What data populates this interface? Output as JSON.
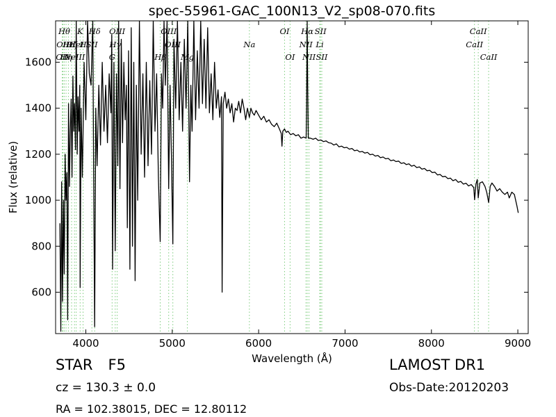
{
  "chart_data": {
    "type": "line",
    "title": "spec-55961-GAC_100N13_V2_sp08-070.fits",
    "xlabel": "Wavelength (Å)",
    "ylabel": "Flux (relative)",
    "xlim": [
      3650,
      9120
    ],
    "ylim": [
      420,
      1780
    ],
    "xticks": [
      4000,
      5000,
      6000,
      7000,
      8000,
      9000
    ],
    "yticks": [
      600,
      800,
      1000,
      1200,
      1400,
      1600
    ],
    "grid": false,
    "series": [
      {
        "color": "#000000",
        "points": [
          [
            3700,
            900
          ],
          [
            3710,
            430
          ],
          [
            3720,
            1080
          ],
          [
            3730,
            560
          ],
          [
            3740,
            1000
          ],
          [
            3750,
            680
          ],
          [
            3760,
            1200
          ],
          [
            3770,
            1000
          ],
          [
            3780,
            1120
          ],
          [
            3790,
            480
          ],
          [
            3800,
            1420
          ],
          [
            3810,
            1060
          ],
          [
            3820,
            1300
          ],
          [
            3830,
            1440
          ],
          [
            3840,
            1100
          ],
          [
            3850,
            1540
          ],
          [
            3860,
            1300
          ],
          [
            3870,
            1420
          ],
          [
            3880,
            1220
          ],
          [
            3889,
            1780
          ],
          [
            3900,
            1200
          ],
          [
            3910,
            1450
          ],
          [
            3920,
            1300
          ],
          [
            3930,
            1500
          ],
          [
            3934,
            620
          ],
          [
            3945,
            1400
          ],
          [
            3960,
            1100
          ],
          [
            3970,
            1350
          ],
          [
            3980,
            1600
          ],
          [
            4000,
            1350
          ],
          [
            4020,
            1780
          ],
          [
            4040,
            1550
          ],
          [
            4060,
            1500
          ],
          [
            4080,
            1780
          ],
          [
            4090,
            1150
          ],
          [
            4102,
            450
          ],
          [
            4115,
            1400
          ],
          [
            4130,
            1150
          ],
          [
            4150,
            1500
          ],
          [
            4170,
            1240
          ],
          [
            4190,
            1600
          ],
          [
            4210,
            1300
          ],
          [
            4230,
            1500
          ],
          [
            4250,
            1250
          ],
          [
            4270,
            1550
          ],
          [
            4290,
            1380
          ],
          [
            4300,
            1720
          ],
          [
            4310,
            700
          ],
          [
            4325,
            1600
          ],
          [
            4340,
            780
          ],
          [
            4355,
            1550
          ],
          [
            4370,
            1150
          ],
          [
            4380,
            1780
          ],
          [
            4395,
            1050
          ],
          [
            4410,
            1700
          ],
          [
            4425,
            1250
          ],
          [
            4440,
            1600
          ],
          [
            4455,
            1350
          ],
          [
            4470,
            1500
          ],
          [
            4480,
            880
          ],
          [
            4495,
            1650
          ],
          [
            4510,
            700
          ],
          [
            4525,
            1750
          ],
          [
            4540,
            800
          ],
          [
            4555,
            1600
          ],
          [
            4570,
            650
          ],
          [
            4585,
            1500
          ],
          [
            4600,
            1000
          ],
          [
            4620,
            1780
          ],
          [
            4640,
            1200
          ],
          [
            4660,
            1550
          ],
          [
            4680,
            1100
          ],
          [
            4700,
            1600
          ],
          [
            4720,
            1150
          ],
          [
            4740,
            1520
          ],
          [
            4760,
            1200
          ],
          [
            4780,
            1780
          ],
          [
            4800,
            1300
          ],
          [
            4820,
            1550
          ],
          [
            4840,
            1100
          ],
          [
            4861,
            820
          ],
          [
            4875,
            1550
          ],
          [
            4890,
            1400
          ],
          [
            4905,
            1780
          ],
          [
            4920,
            1500
          ],
          [
            4940,
            1780
          ],
          [
            4959,
            1050
          ],
          [
            4975,
            1500
          ],
          [
            4990,
            1200
          ],
          [
            5007,
            810
          ],
          [
            5020,
            1700
          ],
          [
            5040,
            1400
          ],
          [
            5060,
            1780
          ],
          [
            5080,
            1350
          ],
          [
            5100,
            1600
          ],
          [
            5120,
            1300
          ],
          [
            5140,
            1700
          ],
          [
            5160,
            1400
          ],
          [
            5180,
            1780
          ],
          [
            5200,
            1080
          ],
          [
            5215,
            1500
          ],
          [
            5230,
            1300
          ],
          [
            5250,
            1780
          ],
          [
            5270,
            1350
          ],
          [
            5290,
            1650
          ],
          [
            5310,
            1400
          ],
          [
            5330,
            1780
          ],
          [
            5350,
            1420
          ],
          [
            5370,
            1700
          ],
          [
            5390,
            1400
          ],
          [
            5410,
            1750
          ],
          [
            5430,
            1380
          ],
          [
            5450,
            1550
          ],
          [
            5470,
            1350
          ],
          [
            5490,
            1600
          ],
          [
            5510,
            1400
          ],
          [
            5530,
            1480
          ],
          [
            5550,
            1360
          ],
          [
            5570,
            1450
          ],
          [
            5577,
            600
          ],
          [
            5590,
            1420
          ],
          [
            5610,
            1470
          ],
          [
            5630,
            1400
          ],
          [
            5650,
            1440
          ],
          [
            5670,
            1380
          ],
          [
            5690,
            1420
          ],
          [
            5710,
            1340
          ],
          [
            5730,
            1400
          ],
          [
            5750,
            1390
          ],
          [
            5770,
            1430
          ],
          [
            5790,
            1380
          ],
          [
            5810,
            1440
          ],
          [
            5830,
            1400
          ],
          [
            5850,
            1350
          ],
          [
            5870,
            1400
          ],
          [
            5893,
            1360
          ],
          [
            5910,
            1400
          ],
          [
            5930,
            1380
          ],
          [
            5950,
            1370
          ],
          [
            5970,
            1390
          ],
          [
            6000,
            1370
          ],
          [
            6030,
            1350
          ],
          [
            6060,
            1365
          ],
          [
            6090,
            1340
          ],
          [
            6120,
            1350
          ],
          [
            6150,
            1330
          ],
          [
            6180,
            1320
          ],
          [
            6210,
            1335
          ],
          [
            6240,
            1310
          ],
          [
            6262,
            1290
          ],
          [
            6270,
            1235
          ],
          [
            6280,
            1300
          ],
          [
            6300,
            1310
          ],
          [
            6320,
            1295
          ],
          [
            6340,
            1300
          ],
          [
            6370,
            1285
          ],
          [
            6400,
            1290
          ],
          [
            6430,
            1280
          ],
          [
            6460,
            1285
          ],
          [
            6490,
            1270
          ],
          [
            6520,
            1275
          ],
          [
            6550,
            1270
          ],
          [
            6555,
            1400
          ],
          [
            6562,
            1780
          ],
          [
            6568,
            1500
          ],
          [
            6575,
            1270
          ],
          [
            6600,
            1270
          ],
          [
            6630,
            1265
          ],
          [
            6660,
            1270
          ],
          [
            6690,
            1260
          ],
          [
            6720,
            1262
          ],
          [
            6750,
            1255
          ],
          [
            6780,
            1258
          ],
          [
            6810,
            1250
          ],
          [
            6840,
            1248
          ],
          [
            6870,
            1240
          ],
          [
            6900,
            1245
          ],
          [
            6930,
            1232
          ],
          [
            6960,
            1235
          ],
          [
            6990,
            1228
          ],
          [
            7020,
            1230
          ],
          [
            7050,
            1222
          ],
          [
            7080,
            1225
          ],
          [
            7110,
            1215
          ],
          [
            7140,
            1218
          ],
          [
            7170,
            1210
          ],
          [
            7200,
            1212
          ],
          [
            7230,
            1205
          ],
          [
            7260,
            1208
          ],
          [
            7290,
            1198
          ],
          [
            7320,
            1200
          ],
          [
            7350,
            1192
          ],
          [
            7380,
            1195
          ],
          [
            7410,
            1185
          ],
          [
            7440,
            1188
          ],
          [
            7470,
            1180
          ],
          [
            7500,
            1182
          ],
          [
            7530,
            1172
          ],
          [
            7560,
            1175
          ],
          [
            7590,
            1168
          ],
          [
            7620,
            1170
          ],
          [
            7650,
            1160
          ],
          [
            7680,
            1163
          ],
          [
            7710,
            1155
          ],
          [
            7740,
            1158
          ],
          [
            7770,
            1148
          ],
          [
            7800,
            1152
          ],
          [
            7830,
            1142
          ],
          [
            7860,
            1145
          ],
          [
            7890,
            1135
          ],
          [
            7920,
            1138
          ],
          [
            7950,
            1128
          ],
          [
            7980,
            1130
          ],
          [
            8010,
            1120
          ],
          [
            8040,
            1122
          ],
          [
            8070,
            1110
          ],
          [
            8100,
            1112
          ],
          [
            8130,
            1102
          ],
          [
            8160,
            1104
          ],
          [
            8190,
            1094
          ],
          [
            8220,
            1096
          ],
          [
            8250,
            1085
          ],
          [
            8280,
            1090
          ],
          [
            8310,
            1078
          ],
          [
            8340,
            1082
          ],
          [
            8370,
            1070
          ],
          [
            8400,
            1074
          ],
          [
            8430,
            1062
          ],
          [
            8460,
            1068
          ],
          [
            8490,
            1055
          ],
          [
            8500,
            1002
          ],
          [
            8515,
            1070
          ],
          [
            8530,
            1090
          ],
          [
            8542,
            1010
          ],
          [
            8560,
            1075
          ],
          [
            8590,
            1080
          ],
          [
            8620,
            1060
          ],
          [
            8640,
            1035
          ],
          [
            8662,
            990
          ],
          [
            8680,
            1060
          ],
          [
            8700,
            1075
          ],
          [
            8730,
            1060
          ],
          [
            8760,
            1040
          ],
          [
            8790,
            1050
          ],
          [
            8820,
            1035
          ],
          [
            8850,
            1025
          ],
          [
            8880,
            1035
          ],
          [
            8900,
            1010
          ],
          [
            8930,
            1035
          ],
          [
            8960,
            1025
          ],
          [
            8990,
            975
          ],
          [
            9005,
            945
          ]
        ]
      }
    ],
    "lines": [
      {
        "wavelength": 3727,
        "label": "OII",
        "row": 3
      },
      {
        "wavelength": 3735,
        "label": "OII",
        "row": 2
      },
      {
        "wavelength": 3750,
        "label": "Hθ",
        "row": 1
      },
      {
        "wavelength": 3771,
        "label": "Hη",
        "row": 3
      },
      {
        "wavelength": 3798,
        "label": "Hε",
        "row": 2
      },
      {
        "wavelength": 3835,
        "label": "Hζ",
        "row": 2
      },
      {
        "wavelength": 3869,
        "label": "NeIII",
        "row": 3
      },
      {
        "wavelength": 3889,
        "label": "HeI",
        "row": 2
      },
      {
        "wavelength": 3934,
        "label": "K",
        "row": 1
      },
      {
        "wavelength": 3968,
        "label": "H",
        "row": 2
      },
      {
        "wavelength": 4070,
        "label": "SII",
        "row": 2
      },
      {
        "wavelength": 4102,
        "label": "Hδ",
        "row": 1
      },
      {
        "wavelength": 4304,
        "label": "G",
        "row": 3
      },
      {
        "wavelength": 4340,
        "label": "Hγ",
        "row": 2
      },
      {
        "wavelength": 4363,
        "label": "OIII",
        "row": 1
      },
      {
        "wavelength": 4861,
        "label": "Hβ",
        "row": 3
      },
      {
        "wavelength": 4959,
        "label": "OIII",
        "row": 1
      },
      {
        "wavelength": 5007,
        "label": "OIII",
        "row": 2
      },
      {
        "wavelength": 5175,
        "label": "Mg",
        "row": 3
      },
      {
        "wavelength": 5893,
        "label": "Na",
        "row": 2
      },
      {
        "wavelength": 6300,
        "label": "OI",
        "row": 1
      },
      {
        "wavelength": 6364,
        "label": "OI",
        "row": 3
      },
      {
        "wavelength": 6548,
        "label": "NII",
        "row": 2
      },
      {
        "wavelength": 6563,
        "label": "Hα",
        "row": 1
      },
      {
        "wavelength": 6583,
        "label": "NII",
        "row": 3
      },
      {
        "wavelength": 6707,
        "label": "Li",
        "row": 2
      },
      {
        "wavelength": 6716,
        "label": "SII",
        "row": 1
      },
      {
        "wavelength": 6731,
        "label": "SII",
        "row": 3
      },
      {
        "wavelength": 8498,
        "label": "CaII",
        "row": 2
      },
      {
        "wavelength": 8542,
        "label": "CaII",
        "row": 1
      },
      {
        "wavelength": 8662,
        "label": "CaII",
        "row": 3
      }
    ]
  },
  "info": {
    "object_class": "STAR",
    "subclass": "F5",
    "survey": "LAMOST DR1",
    "redshift": "cz = 130.3 ± 0.0",
    "obs_date": "Obs-Date:20120203",
    "coords": "RA = 102.38015, DEC = 12.80112"
  },
  "colors": {
    "spectrum": "#000000",
    "line_marker": "#7ccc7c",
    "axis": "#000000"
  }
}
